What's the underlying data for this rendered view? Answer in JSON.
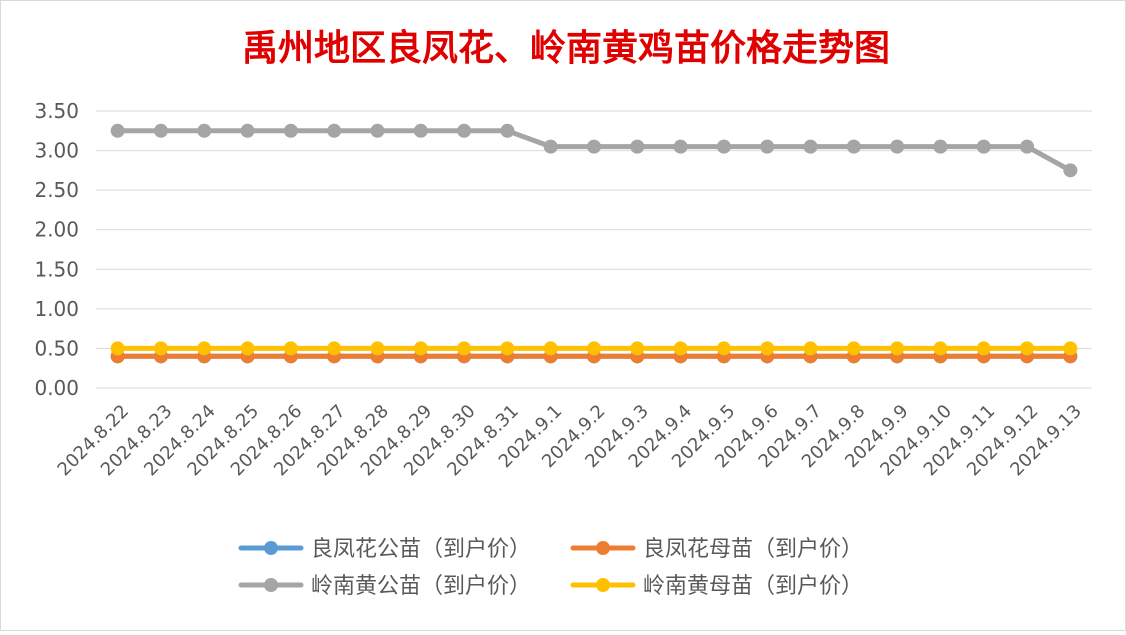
{
  "chart_data": {
    "type": "line",
    "title": "禹州地区良凤花、岭南黄鸡苗价格走势图",
    "xlabel": "",
    "ylabel": "",
    "categories": [
      "2024.8.22",
      "2024.8.23",
      "2024.8.24",
      "2024.8.25",
      "2024.8.26",
      "2024.8.27",
      "2024.8.28",
      "2024.8.29",
      "2024.8.30",
      "2024.8.31",
      "2024.9.1",
      "2024.9.2",
      "2024.9.3",
      "2024.9.4",
      "2024.9.5",
      "2024.9.6",
      "2024.9.7",
      "2024.9.8",
      "2024.9.9",
      "2024.9.10",
      "2024.9.11",
      "2024.9.12",
      "2024.9.13"
    ],
    "ylim": [
      0,
      3.5
    ],
    "yticks": [
      "0.00",
      "0.50",
      "1.00",
      "1.50",
      "2.00",
      "2.50",
      "3.00",
      "3.50"
    ],
    "grid": true,
    "legend_position": "bottom",
    "series": [
      {
        "name": "良凤花公苗（到户价）",
        "color": "#5B9BD5",
        "values": [
          0.4,
          0.4,
          0.4,
          0.4,
          0.4,
          0.4,
          0.4,
          0.4,
          0.4,
          0.4,
          0.4,
          0.4,
          0.4,
          0.4,
          0.4,
          0.4,
          0.4,
          0.4,
          0.4,
          0.4,
          0.4,
          0.4,
          0.4
        ]
      },
      {
        "name": "良凤花母苗（到户价）",
        "color": "#ED7D31",
        "values": [
          0.4,
          0.4,
          0.4,
          0.4,
          0.4,
          0.4,
          0.4,
          0.4,
          0.4,
          0.4,
          0.4,
          0.4,
          0.4,
          0.4,
          0.4,
          0.4,
          0.4,
          0.4,
          0.4,
          0.4,
          0.4,
          0.4,
          0.4
        ]
      },
      {
        "name": "岭南黄公苗（到户价）",
        "color": "#A5A5A5",
        "values": [
          3.25,
          3.25,
          3.25,
          3.25,
          3.25,
          3.25,
          3.25,
          3.25,
          3.25,
          3.25,
          3.05,
          3.05,
          3.05,
          3.05,
          3.05,
          3.05,
          3.05,
          3.05,
          3.05,
          3.05,
          3.05,
          3.05,
          2.75
        ]
      },
      {
        "name": "岭南黄母苗（到户价）",
        "color": "#FFC000",
        "values": [
          0.5,
          0.5,
          0.5,
          0.5,
          0.5,
          0.5,
          0.5,
          0.5,
          0.5,
          0.5,
          0.5,
          0.5,
          0.5,
          0.5,
          0.5,
          0.5,
          0.5,
          0.5,
          0.5,
          0.5,
          0.5,
          0.5,
          0.5
        ]
      }
    ]
  },
  "colors": {
    "title": "#E00000",
    "axis_text": "#595959",
    "gridline": "#D9D9D9"
  }
}
